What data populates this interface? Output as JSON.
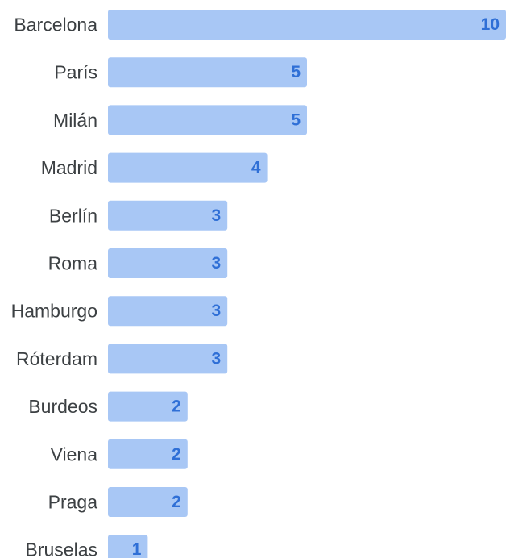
{
  "chart_data": {
    "type": "bar",
    "orientation": "horizontal",
    "categories": [
      "Barcelona",
      "París",
      "Milán",
      "Madrid",
      "Berlín",
      "Roma",
      "Hamburgo",
      "Róterdam",
      "Burdeos",
      "Viena",
      "Praga",
      "Bruselas"
    ],
    "values": [
      10,
      5,
      5,
      4,
      3,
      3,
      3,
      3,
      2,
      2,
      2,
      1
    ],
    "xlim": [
      0,
      10
    ],
    "grid": false,
    "legend": "none",
    "colors": {
      "bar": "#a8c7f5",
      "value_label": "#2f6fd6",
      "category_label": "#3c4043"
    }
  }
}
